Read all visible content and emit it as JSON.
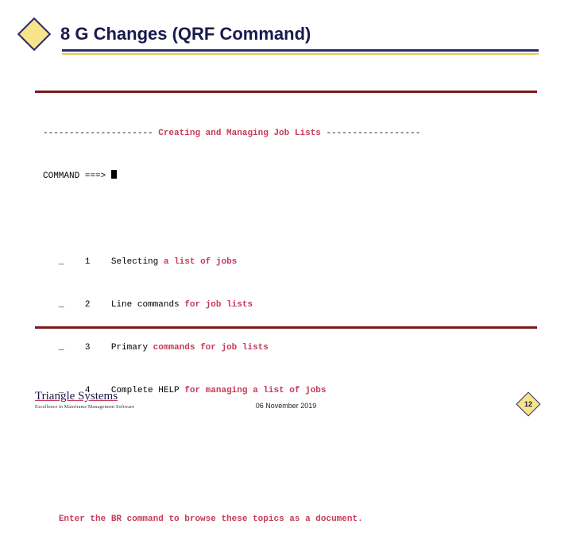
{
  "slide": {
    "title": "8 G Changes (QRF Command)",
    "footer_date": "06 November 2019",
    "slide_number": "12",
    "logo_brand_a": "Triangle",
    "logo_brand_b": " Systems",
    "logo_tagline": "Excellence in Mainframe Management Software"
  },
  "terminal": {
    "dash_left": "--------------------- ",
    "banner": "Creating and Managing Job Lists",
    "dash_right": " ------------------",
    "cmd_label": "COMMAND ===> ",
    "rows": [
      {
        "sel": "_",
        "num": "1",
        "pre": "Selecting ",
        "hl": "a list of jobs"
      },
      {
        "sel": "_",
        "num": "2",
        "pre": "Line commands ",
        "hl": "for job lists"
      },
      {
        "sel": "_",
        "num": "3",
        "pre": "Primary ",
        "hl": "commands for job lists"
      },
      {
        "sel": "_",
        "num": "4",
        "pre": "Complete HELP ",
        "hl": "for managing a list of jobs"
      }
    ],
    "hint_a": "Enter the ",
    "hint_b": "BR",
    "hint_c": " command to browse these topics as a document."
  },
  "colors": {
    "title": "#1a1a4d",
    "accent": "#e3c94f",
    "diamond_fill": "#f5e48a",
    "diamond_border": "#2c2a6b",
    "terminal_border": "#7a1a1a",
    "highlight": "#c73a5a"
  }
}
